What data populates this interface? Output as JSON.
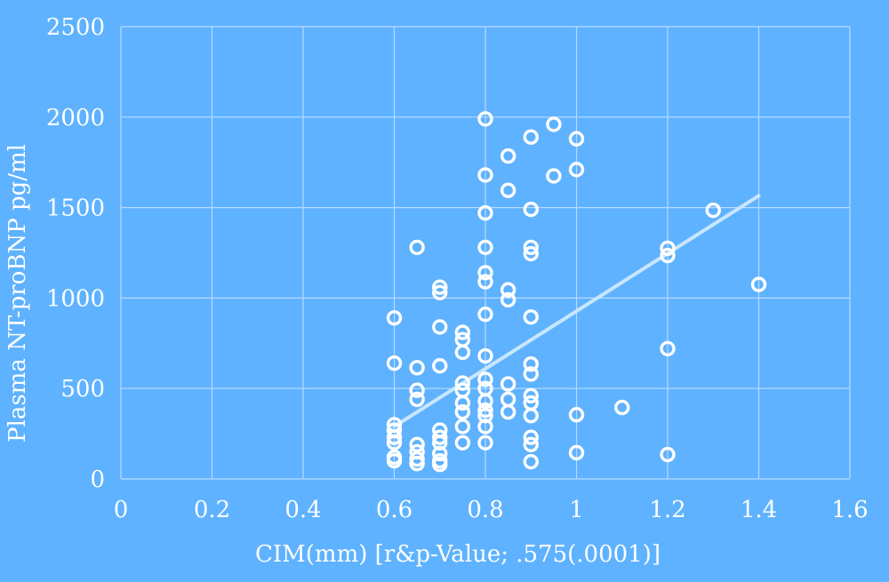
{
  "colors": {
    "background": "#5EB2FF",
    "grid": "#B7DBFF",
    "points": "#FFFFFF",
    "trendline": "#C8E6FF",
    "text": "#FFFFFF"
  },
  "chart_data": {
    "type": "scatter",
    "xlabel": "CIM(mm)   [r&p-Value; .575(.0001)]",
    "ylabel": "Plasma NT-proBNP pg/ml",
    "xlim": [
      0,
      1.6
    ],
    "ylim": [
      0,
      2500
    ],
    "x_ticks": [
      "0",
      "0.2",
      "0.4",
      "0.6",
      "0.8",
      "1",
      "1.2",
      "1.4",
      "1.6"
    ],
    "y_ticks": [
      "0",
      "500",
      "1000",
      "1500",
      "2000",
      "2500"
    ],
    "grid": true,
    "legend": "none",
    "trendline": {
      "type": "linear",
      "x": [
        0.6,
        1.4
      ],
      "y": [
        290,
        1565
      ]
    },
    "series": [
      {
        "points": [
          [
            0.6,
            890
          ],
          [
            0.6,
            640
          ],
          [
            0.6,
            300
          ],
          [
            0.6,
            270
          ],
          [
            0.6,
            230
          ],
          [
            0.6,
            200
          ],
          [
            0.6,
            120
          ],
          [
            0.6,
            100
          ],
          [
            0.65,
            1280
          ],
          [
            0.65,
            615
          ],
          [
            0.65,
            490
          ],
          [
            0.65,
            440
          ],
          [
            0.65,
            190
          ],
          [
            0.65,
            150
          ],
          [
            0.65,
            110
          ],
          [
            0.65,
            85
          ],
          [
            0.7,
            1060
          ],
          [
            0.7,
            1030
          ],
          [
            0.7,
            840
          ],
          [
            0.7,
            625
          ],
          [
            0.7,
            270
          ],
          [
            0.7,
            230
          ],
          [
            0.7,
            200
          ],
          [
            0.7,
            140
          ],
          [
            0.7,
            100
          ],
          [
            0.7,
            80
          ],
          [
            0.75,
            810
          ],
          [
            0.75,
            770
          ],
          [
            0.75,
            700
          ],
          [
            0.75,
            530
          ],
          [
            0.75,
            490
          ],
          [
            0.75,
            420
          ],
          [
            0.75,
            370
          ],
          [
            0.75,
            290
          ],
          [
            0.75,
            200
          ],
          [
            0.8,
            1990
          ],
          [
            0.8,
            1680
          ],
          [
            0.8,
            1470
          ],
          [
            0.8,
            1280
          ],
          [
            0.8,
            1140
          ],
          [
            0.8,
            1090
          ],
          [
            0.8,
            910
          ],
          [
            0.8,
            680
          ],
          [
            0.8,
            550
          ],
          [
            0.8,
            500
          ],
          [
            0.8,
            430
          ],
          [
            0.8,
            380
          ],
          [
            0.8,
            350
          ],
          [
            0.8,
            290
          ],
          [
            0.8,
            200
          ],
          [
            0.85,
            1785
          ],
          [
            0.85,
            1595
          ],
          [
            0.85,
            1045
          ],
          [
            0.85,
            990
          ],
          [
            0.85,
            525
          ],
          [
            0.85,
            440
          ],
          [
            0.85,
            370
          ],
          [
            0.9,
            1890
          ],
          [
            0.9,
            1490
          ],
          [
            0.9,
            1280
          ],
          [
            0.9,
            1245
          ],
          [
            0.9,
            895
          ],
          [
            0.9,
            635
          ],
          [
            0.9,
            580
          ],
          [
            0.9,
            460
          ],
          [
            0.9,
            420
          ],
          [
            0.9,
            350
          ],
          [
            0.9,
            230
          ],
          [
            0.9,
            190
          ],
          [
            0.9,
            95
          ],
          [
            0.95,
            1960
          ],
          [
            0.95,
            1675
          ],
          [
            1.0,
            1880
          ],
          [
            1.0,
            1710
          ],
          [
            1.0,
            355
          ],
          [
            1.0,
            145
          ],
          [
            1.1,
            395
          ],
          [
            1.2,
            1275
          ],
          [
            1.2,
            1235
          ],
          [
            1.2,
            720
          ],
          [
            1.2,
            135
          ],
          [
            1.3,
            1485
          ],
          [
            1.4,
            1075
          ]
        ]
      }
    ]
  }
}
